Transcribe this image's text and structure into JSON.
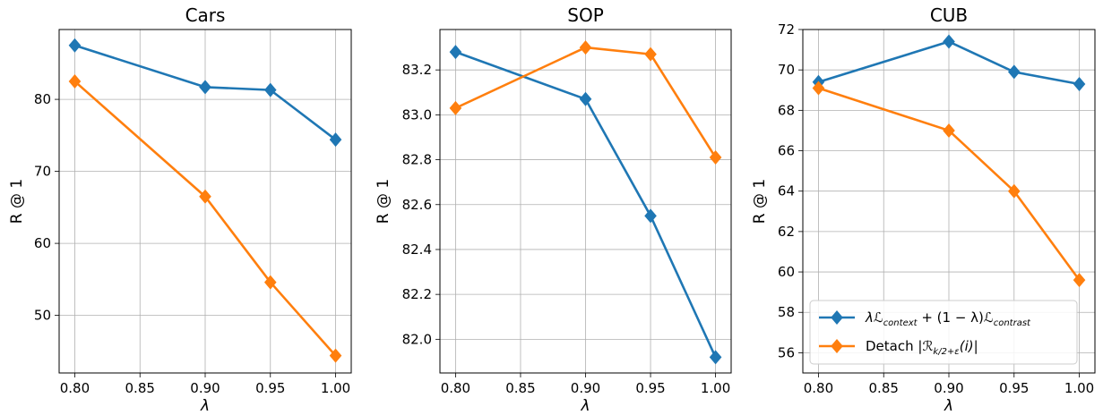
{
  "legend": {
    "entries": [
      {
        "label": "λℒcontext + (1 − λ)ℒcontrast",
        "color": "#1f77b4",
        "marker": "diamond"
      },
      {
        "label": "Detach |ℛk/2+ε(i)|",
        "color": "#ff7f0e",
        "marker": "diamond"
      }
    ],
    "placement": "lower-left (CUB panel)"
  },
  "chart_data": [
    {
      "type": "line",
      "title": "Cars",
      "xlabel": "λ",
      "ylabel": "R @ 1",
      "x": [
        0.8,
        0.9,
        0.95,
        1.0
      ],
      "xticks": [
        0.8,
        0.85,
        0.9,
        0.95,
        1.0
      ],
      "xtick_labels": [
        "0.80",
        "0.85",
        "0.90",
        "0.95",
        "1.00"
      ],
      "xlim": [
        0.788,
        1.012
      ],
      "yticks": [
        50,
        60,
        70,
        80
      ],
      "ytick_labels": [
        "50",
        "60",
        "70",
        "80"
      ],
      "ylim": [
        42.0,
        89.7
      ],
      "grid": true,
      "series": [
        {
          "values": [
            87.5,
            81.7,
            81.3,
            74.4
          ],
          "color": "#1f77b4"
        },
        {
          "values": [
            82.5,
            66.5,
            54.6,
            44.4
          ],
          "color": "#ff7f0e"
        }
      ]
    },
    {
      "type": "line",
      "title": "SOP",
      "xlabel": "λ",
      "ylabel": "R @ 1",
      "x": [
        0.8,
        0.9,
        0.95,
        1.0
      ],
      "xticks": [
        0.8,
        0.85,
        0.9,
        0.95,
        1.0
      ],
      "xtick_labels": [
        "0.80",
        "0.85",
        "0.90",
        "0.95",
        "1.00"
      ],
      "xlim": [
        0.788,
        1.012
      ],
      "yticks": [
        82.0,
        82.2,
        82.4,
        82.6,
        82.8,
        83.0,
        83.2
      ],
      "ytick_labels": [
        "82.0",
        "82.2",
        "82.4",
        "82.6",
        "82.8",
        "83.0",
        "83.2"
      ],
      "ylim": [
        81.85,
        83.38
      ],
      "grid": true,
      "series": [
        {
          "values": [
            83.28,
            83.07,
            82.55,
            81.92
          ],
          "color": "#1f77b4"
        },
        {
          "values": [
            83.03,
            83.3,
            83.27,
            82.81
          ],
          "color": "#ff7f0e"
        }
      ]
    },
    {
      "type": "line",
      "title": "CUB",
      "xlabel": "λ",
      "ylabel": "R @ 1",
      "x": [
        0.8,
        0.9,
        0.95,
        1.0
      ],
      "xticks": [
        0.8,
        0.85,
        0.9,
        0.95,
        1.0
      ],
      "xtick_labels": [
        "0.80",
        "0.85",
        "0.90",
        "0.95",
        "1.00"
      ],
      "xlim": [
        0.788,
        1.012
      ],
      "yticks": [
        56,
        58,
        60,
        62,
        64,
        66,
        68,
        70,
        72
      ],
      "ytick_labels": [
        "56",
        "58",
        "60",
        "62",
        "64",
        "66",
        "68",
        "70",
        "72"
      ],
      "ylim": [
        55.0,
        72.0
      ],
      "grid": true,
      "series": [
        {
          "values": [
            69.4,
            71.4,
            69.9,
            69.3
          ],
          "color": "#1f77b4"
        },
        {
          "values": [
            69.1,
            67.0,
            64.0,
            59.6
          ],
          "color": "#ff7f0e"
        }
      ]
    }
  ]
}
